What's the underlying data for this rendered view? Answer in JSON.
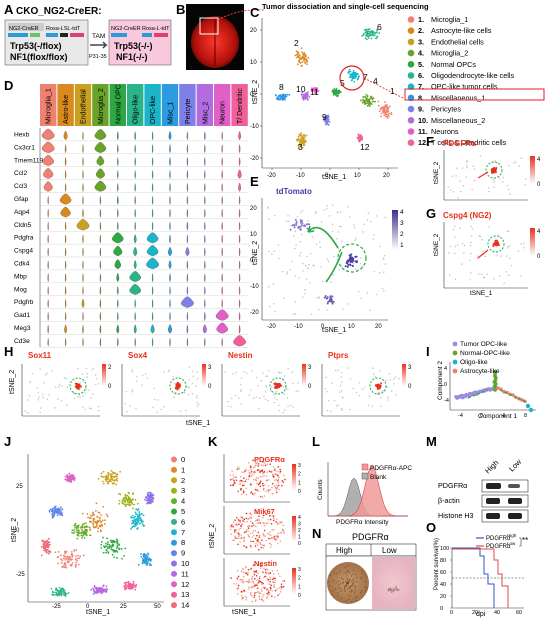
{
  "panels": {
    "A": {
      "label": "A",
      "title": "CKO_NG2-CreER:",
      "left_box": {
        "tag1": "NG2-CreER",
        "tag2": "Rosa-LSL-tdT",
        "line1": "Trp53(-/flox)",
        "line2": "NF1(flox/flox)"
      },
      "tam": "TAM",
      "timing": "P31-35",
      "right_box": {
        "tag1": "NG2-CreER",
        "tag2": "Rosa-L-tdT",
        "line1": "Trp53(-/-)",
        "line2": "NF1(-/-)"
      }
    },
    "B": {
      "label": "B"
    },
    "C": {
      "label": "C",
      "caption": "Tumor dissociation and single-cell sequencing",
      "xlabel": "tSNE_1",
      "ylabel": "tSNE_2",
      "xticks": [
        "-20",
        "-10",
        "0",
        "10",
        "20"
      ],
      "yticks": [
        "20",
        "10",
        "0",
        "-10",
        "-20"
      ],
      "cluster_labels": [
        "1",
        "2",
        "3",
        "4",
        "5",
        "6",
        "7",
        "8",
        "9",
        "10",
        "11",
        "12"
      ],
      "legend": [
        {
          "num": "1.",
          "name": "Microglia_1",
          "color": "#f08072"
        },
        {
          "num": "2.",
          "name": "Astrocyte-like cells",
          "color": "#d98a1f"
        },
        {
          "num": "3.",
          "name": "Endothelial cells",
          "color": "#c9a020"
        },
        {
          "num": "4.",
          "name": "Microglia_2",
          "color": "#6aa32a"
        },
        {
          "num": "5.",
          "name": "Normal OPCs",
          "color": "#2ea843"
        },
        {
          "num": "6.",
          "name": "Oligodendrocyte-like cells",
          "color": "#2bb48a"
        },
        {
          "num": "7.",
          "name": "OPC-like tumor cells",
          "color": "#1bb4c8"
        },
        {
          "num": "8.",
          "name": "Miscellaneous_1",
          "color": "#2c9be0"
        },
        {
          "num": "9.",
          "name": "Pericytes",
          "color": "#7f7fe8"
        },
        {
          "num": "10.",
          "name": "Miscellaneous_2",
          "color": "#b36be0"
        },
        {
          "num": "11.",
          "name": "Neurons",
          "color": "#e060c8"
        },
        {
          "num": "12.",
          "name": "T cells & Dendritic cells",
          "color": "#f0609a"
        }
      ]
    },
    "D": {
      "label": "D",
      "columns": [
        {
          "name": "Microglia_1",
          "color": "#f08072"
        },
        {
          "name": "Astro-like",
          "color": "#d98a1f"
        },
        {
          "name": "Endothelial",
          "color": "#c9a020"
        },
        {
          "name": "Microglia_2",
          "color": "#6aa32a"
        },
        {
          "name": "Normal OPC",
          "color": "#2ea843"
        },
        {
          "name": "Oligo-like",
          "color": "#2bb48a"
        },
        {
          "name": "OPC-like",
          "color": "#1bb4c8"
        },
        {
          "name": "Misc_1",
          "color": "#2c9be0"
        },
        {
          "name": "Pericyte",
          "color": "#7f7fe8"
        },
        {
          "name": "Misc_2",
          "color": "#b36be0"
        },
        {
          "name": "Neuron",
          "color": "#e060c8"
        },
        {
          "name": "T/ Dendritic",
          "color": "#f0609a"
        }
      ],
      "genes": [
        "Hexb",
        "Cx3cr1",
        "Tmem119",
        "Ccl2",
        "Ccl3",
        "Gfap",
        "Aqp4",
        "Cldn5",
        "Pdgfra",
        "Cspg4",
        "Cdk4",
        "Mbp",
        "Mog",
        "Pdgfrb",
        "Gad1",
        "Meg3",
        "Cd3e"
      ],
      "expr": [
        [
          1.0,
          0.3,
          0.05,
          0.9,
          0.1,
          0.1,
          0.05,
          0.2,
          0.05,
          0.1,
          0.05,
          0.2
        ],
        [
          1.0,
          0.1,
          0.05,
          0.9,
          0.05,
          0.05,
          0.05,
          0.1,
          0.05,
          0.05,
          0.05,
          0.1
        ],
        [
          0.9,
          0.1,
          0.05,
          0.6,
          0.05,
          0.05,
          0.05,
          0.1,
          0.05,
          0.05,
          0.05,
          0.1
        ],
        [
          0.8,
          0.05,
          0.05,
          0.7,
          0.05,
          0.05,
          0.05,
          0.05,
          0.05,
          0.05,
          0.05,
          0.3
        ],
        [
          0.7,
          0.05,
          0.05,
          0.9,
          0.05,
          0.05,
          0.05,
          0.05,
          0.05,
          0.05,
          0.05,
          0.2
        ],
        [
          0.05,
          0.9,
          0.05,
          0.05,
          0.1,
          0.05,
          0.05,
          0.05,
          0.05,
          0.05,
          0.05,
          0.05
        ],
        [
          0.05,
          0.8,
          0.1,
          0.05,
          0.05,
          0.05,
          0.05,
          0.05,
          0.05,
          0.05,
          0.05,
          0.05
        ],
        [
          0.05,
          0.05,
          1.0,
          0.05,
          0.05,
          0.05,
          0.05,
          0.05,
          0.1,
          0.05,
          0.05,
          0.05
        ],
        [
          0.05,
          0.05,
          0.05,
          0.05,
          0.9,
          0.2,
          0.9,
          0.1,
          0.05,
          0.05,
          0.05,
          0.05
        ],
        [
          0.05,
          0.05,
          0.05,
          0.05,
          0.7,
          0.3,
          0.9,
          0.3,
          0.3,
          0.05,
          0.05,
          0.05
        ],
        [
          0.05,
          0.05,
          0.05,
          0.05,
          0.5,
          0.2,
          1.0,
          0.2,
          0.05,
          0.05,
          0.05,
          0.05
        ],
        [
          0.05,
          0.05,
          0.05,
          0.05,
          0.2,
          0.9,
          0.05,
          0.1,
          0.05,
          0.05,
          0.05,
          0.05
        ],
        [
          0.05,
          0.05,
          0.05,
          0.05,
          0.1,
          0.9,
          0.05,
          0.05,
          0.05,
          0.05,
          0.05,
          0.05
        ],
        [
          0.05,
          0.05,
          0.2,
          0.05,
          0.05,
          0.05,
          0.05,
          0.05,
          1.0,
          0.05,
          0.05,
          0.05
        ],
        [
          0.05,
          0.05,
          0.05,
          0.05,
          0.05,
          0.05,
          0.05,
          0.05,
          0.05,
          0.1,
          1.0,
          0.05
        ],
        [
          0.1,
          0.2,
          0.1,
          0.1,
          0.2,
          0.2,
          0.3,
          0.3,
          0.1,
          0.3,
          0.9,
          0.1
        ],
        [
          0.05,
          0.05,
          0.05,
          0.05,
          0.05,
          0.05,
          0.05,
          0.05,
          0.05,
          0.05,
          0.05,
          1.0
        ]
      ]
    },
    "E": {
      "label": "E",
      "title": "tdTomato",
      "xlabel": "tSNE_1",
      "ylabel": "tSNE_2",
      "xticks": [
        "-20",
        "-10",
        "0",
        "10",
        "20"
      ],
      "yticks": [
        "20",
        "10",
        "0",
        "-10",
        "-20"
      ],
      "scale": [
        "4",
        "3",
        "2",
        "1"
      ]
    },
    "F": {
      "label": "F",
      "title": "PDGFRα",
      "ylabel": "tSNE_2",
      "scale_max": "4",
      "scale_min": "0"
    },
    "G": {
      "label": "G",
      "title": "Cspg4 (NG2)",
      "xlabel": "tSNE_1",
      "ylabel": "tSNE_2",
      "scale_max": "4",
      "scale_min": "0"
    },
    "H": {
      "label": "H",
      "ylabel": "tSNE_2",
      "xlabel": "tSNE_1",
      "plots": [
        {
          "gene": "Sox11",
          "max": "2",
          "min": "0"
        },
        {
          "gene": "Sox4",
          "max": "3",
          "min": "0"
        },
        {
          "gene": "Nestin",
          "max": "3",
          "min": "0"
        },
        {
          "gene": "Ptprs",
          "max": "3",
          "min": "0"
        }
      ]
    },
    "I": {
      "label": "I",
      "xlabel": "Component 1",
      "ylabel": "Component 2",
      "xticks": [
        "-4",
        "0",
        "4",
        "8"
      ],
      "yticks": [
        "4",
        "0",
        "-4"
      ],
      "legend": [
        {
          "name": "Tumor OPC-like",
          "color": "#9a8ce0"
        },
        {
          "name": "Normal-OPC-like",
          "color": "#6aa32a"
        },
        {
          "name": "Oligo-like",
          "color": "#1bb4c8"
        },
        {
          "name": "Astrocyte-like",
          "color": "#f08072"
        }
      ]
    },
    "J": {
      "label": "J",
      "xlabel": "tSNE_1",
      "ylabel": "tSNE_2",
      "xticks": [
        "-25",
        "0",
        "25",
        "50"
      ],
      "yticks": [
        "25",
        "0",
        "-25"
      ],
      "legend": [
        {
          "n": "0",
          "color": "#f08072"
        },
        {
          "n": "1",
          "color": "#e3862c"
        },
        {
          "n": "2",
          "color": "#c9a020"
        },
        {
          "n": "3",
          "color": "#9fb01e"
        },
        {
          "n": "4",
          "color": "#5fb22a"
        },
        {
          "n": "5",
          "color": "#2ea843"
        },
        {
          "n": "6",
          "color": "#2bb48a"
        },
        {
          "n": "7",
          "color": "#1bb4c8"
        },
        {
          "n": "8",
          "color": "#2c9be0"
        },
        {
          "n": "9",
          "color": "#5f86ea"
        },
        {
          "n": "10",
          "color": "#8f72e6"
        },
        {
          "n": "11",
          "color": "#b36be0"
        },
        {
          "n": "12",
          "color": "#e060c8"
        },
        {
          "n": "13",
          "color": "#f0609a"
        },
        {
          "n": "14",
          "color": "#f06a78"
        }
      ]
    },
    "K": {
      "label": "K",
      "xlabel": "tSNE_1",
      "ylabel": "tSNE_2",
      "plots": [
        {
          "gene": "PDGFRα",
          "ticks": [
            "3",
            "2",
            "1",
            "0"
          ]
        },
        {
          "gene": "Mik67",
          "ticks": [
            "4",
            "3",
            "2",
            "1",
            "0"
          ]
        },
        {
          "gene": "Nestin",
          "ticks": [
            "3",
            "2",
            "1",
            "0"
          ]
        }
      ]
    },
    "L": {
      "label": "L",
      "legend": [
        "PDGFRα-APC",
        "Blank"
      ],
      "xlabel": "PDGFRα Intensity",
      "ylabel": "Counts"
    },
    "M": {
      "label": "M",
      "col_high": "High",
      "col_low": "Low",
      "rows": [
        "PDGFRα",
        "β-actin",
        "Histone H3"
      ]
    },
    "N": {
      "label": "N",
      "title": "PDGFRα",
      "high": "High",
      "low": "Low"
    },
    "O": {
      "label": "O",
      "ylabel": "Percent survival(%)",
      "xlabel": "dpi",
      "yticks": [
        "100",
        "80",
        "60",
        "40",
        "20",
        "0"
      ],
      "xticks": [
        "0",
        "20",
        "40",
        "60"
      ],
      "legend": [
        {
          "name": "PDGFRα",
          "sup": "High",
          "color": "#3a54c8"
        },
        {
          "name": "PDGFRα",
          "sup": "Low",
          "color": "#e04848"
        }
      ],
      "sig": "**"
    }
  }
}
